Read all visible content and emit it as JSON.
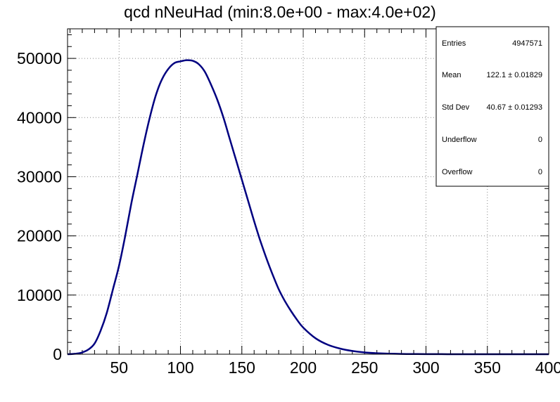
{
  "chart_data": {
    "type": "line",
    "title": "qcd nNeuHad (min:8.0e+00 - max:4.0e+02)",
    "xlabel": "",
    "ylabel": "",
    "xlim": [
      8,
      400
    ],
    "ylim": [
      0,
      55000
    ],
    "grid": true,
    "line_color": "#000080",
    "x_ticks": [
      50,
      100,
      150,
      200,
      250,
      300,
      350,
      400
    ],
    "y_ticks": [
      0,
      10000,
      20000,
      30000,
      40000,
      50000
    ],
    "x_tick_labels": [
      "50",
      "100",
      "150",
      "200",
      "250",
      "300",
      "350",
      "400"
    ],
    "y_tick_labels": [
      "0",
      "10000",
      "20000",
      "30000",
      "40000",
      "50000"
    ],
    "series": [
      {
        "x": [
          8,
          15,
          20,
          25,
          30,
          35,
          40,
          45,
          50,
          55,
          60,
          65,
          70,
          75,
          80,
          85,
          90,
          95,
          100,
          105,
          110,
          115,
          120,
          125,
          130,
          135,
          140,
          145,
          150,
          155,
          160,
          165,
          170,
          175,
          180,
          185,
          190,
          195,
          200,
          210,
          220,
          230,
          240,
          250,
          260,
          270,
          280,
          290,
          300,
          320,
          340,
          360,
          380,
          400
        ],
        "values": [
          0,
          100,
          300,
          800,
          1800,
          4000,
          7000,
          11000,
          15000,
          20000,
          25500,
          30500,
          35500,
          40000,
          43800,
          46500,
          48200,
          49200,
          49500,
          49700,
          49600,
          49000,
          47700,
          45500,
          43000,
          40000,
          36500,
          33000,
          29500,
          26000,
          22500,
          19200,
          16200,
          13500,
          11000,
          9000,
          7300,
          5800,
          4500,
          2700,
          1600,
          950,
          550,
          300,
          170,
          100,
          50,
          30,
          15,
          5,
          2,
          1,
          0,
          0
        ]
      }
    ],
    "stats": {
      "entries_label": "Entries",
      "entries_value": "4947571",
      "mean_label": "Mean",
      "mean_value": "122.1 ± 0.01829",
      "stddev_label": "Std Dev",
      "stddev_value": "40.67 ± 0.01293",
      "underflow_label": "Underflow",
      "underflow_value": "0",
      "overflow_label": "Overflow",
      "overflow_value": "0"
    }
  }
}
